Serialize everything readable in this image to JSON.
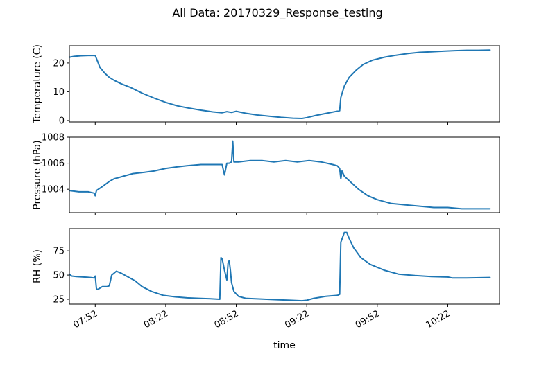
{
  "chart_data": {
    "type": "line",
    "title": "All Data: 20170329_Response_testing",
    "xlabel": "time",
    "x_unit": "clock time (HH:MM), 2017-03-29",
    "xlim": [
      "07:41",
      "10:44"
    ],
    "xticks": [
      "07:52",
      "08:22",
      "08:52",
      "09:22",
      "09:52",
      "10:22"
    ],
    "line_color": "#1f77b4",
    "grid": false,
    "panels": [
      {
        "ylabel": "Temperature (C)",
        "ylim": [
          -0.5,
          26
        ],
        "yticks": [
          0,
          10,
          20
        ],
        "series": [
          {
            "x": [
              "07:41",
              "07:43",
              "07:46",
              "07:49",
              "07:52",
              "07:53",
              "07:54",
              "07:56",
              "07:58",
              "08:00",
              "08:03",
              "08:07",
              "08:12",
              "08:17",
              "08:22",
              "08:27",
              "08:32",
              "08:37",
              "08:42",
              "08:46",
              "08:48",
              "08:50",
              "08:52",
              "08:56",
              "09:01",
              "09:06",
              "09:11",
              "09:16",
              "09:20",
              "09:22",
              "09:26",
              "09:31",
              "09:36",
              "09:36.5",
              "09:38",
              "09:40",
              "09:43",
              "09:46",
              "09:50",
              "09:55",
              "10:00",
              "10:05",
              "10:10",
              "10:15",
              "10:20",
              "10:25",
              "10:30",
              "10:35",
              "10:40"
            ],
            "y": [
              22,
              22.3,
              22.5,
              22.6,
              22.6,
              20.5,
              18.5,
              16.5,
              15,
              14,
              12.8,
              11.5,
              9.5,
              7.8,
              6.3,
              5.1,
              4.3,
              3.6,
              3,
              2.7,
              3.1,
              2.8,
              3.2,
              2.5,
              1.9,
              1.5,
              1.1,
              0.8,
              0.7,
              1.0,
              1.8,
              2.6,
              3.4,
              8,
              12,
              15,
              17.5,
              19.5,
              21,
              22,
              22.7,
              23.3,
              23.7,
              23.9,
              24.1,
              24.3,
              24.4,
              24.4,
              24.5
            ]
          }
        ]
      },
      {
        "ylabel": "Pressure (hPa)",
        "ylim": [
          1002.2,
          1008
        ],
        "yticks": [
          1004,
          1006,
          1008
        ],
        "series": [
          {
            "x": [
              "07:41",
              "07:45",
              "07:49",
              "07:51.5",
              "07:52",
              "07:52.5",
              "07:55",
              "07:58",
              "08:00",
              "08:04",
              "08:08",
              "08:13",
              "08:17",
              "08:22",
              "08:26",
              "08:31",
              "08:37",
              "08:42",
              "08:46",
              "08:47",
              "08:48",
              "08:49",
              "08:50",
              "08:50.5",
              "08:51",
              "08:53",
              "08:58",
              "09:03",
              "09:08",
              "09:13",
              "09:18",
              "09:23",
              "09:28",
              "09:33",
              "09:35",
              "09:36",
              "09:36.5",
              "09:37",
              "09:38",
              "09:41",
              "09:44",
              "09:48",
              "09:52",
              "09:58",
              "10:04",
              "10:10",
              "10:16",
              "10:22",
              "10:28",
              "10:34",
              "10:40"
            ],
            "y": [
              1003.9,
              1003.8,
              1003.8,
              1003.7,
              1003.5,
              1003.9,
              1004.2,
              1004.6,
              1004.8,
              1005,
              1005.2,
              1005.3,
              1005.4,
              1005.6,
              1005.7,
              1005.8,
              1005.9,
              1005.9,
              1005.9,
              1005.1,
              1006.0,
              1006.0,
              1006.1,
              1007.7,
              1006.1,
              1006.1,
              1006.2,
              1006.2,
              1006.1,
              1006.2,
              1006.1,
              1006.2,
              1006.1,
              1005.9,
              1005.8,
              1005.6,
              1004.8,
              1005.4,
              1005.0,
              1004.5,
              1004,
              1003.5,
              1003.2,
              1002.9,
              1002.8,
              1002.7,
              1002.6,
              1002.6,
              1002.5,
              1002.5,
              1002.5
            ]
          }
        ]
      },
      {
        "ylabel": "RH (%)",
        "ylim": [
          20,
          98
        ],
        "yticks": [
          25,
          50,
          75
        ],
        "series": [
          {
            "x": [
              "07:41",
              "07:42",
              "07:44",
              "07:47",
              "07:50",
              "07:51.5",
              "07:52",
              "07:52.5",
              "07:53",
              "07:55",
              "07:57",
              "07:58",
              "07:59",
              "08:01",
              "08:03",
              "08:06",
              "08:09",
              "08:12",
              "08:16",
              "08:21",
              "08:26",
              "08:31",
              "08:36",
              "08:41",
              "08:45",
              "08:45.5",
              "08:46",
              "08:47",
              "08:48",
              "08:48.5",
              "08:49",
              "08:49.5",
              "08:50",
              "08:51",
              "08:53",
              "08:56",
              "09:00",
              "09:05",
              "09:10",
              "09:15",
              "09:20",
              "09:22",
              "09:25",
              "09:30",
              "09:35",
              "09:36",
              "09:36.5",
              "09:38",
              "09:39",
              "09:40",
              "09:42",
              "09:45",
              "09:49",
              "09:55",
              "10:01",
              "10:08",
              "10:15",
              "10:22",
              "10:24",
              "10:30",
              "10:40"
            ],
            "y": [
              51,
              49,
              48.5,
              48,
              47.5,
              47,
              49,
              36,
              35,
              38,
              38,
              39,
              50,
              54,
              52,
              48,
              44,
              38,
              33,
              29,
              27.5,
              26.5,
              26,
              25.5,
              25,
              68,
              67,
              55,
              45,
              62,
              65,
              55,
              42,
              33,
              28,
              26,
              25.5,
              25,
              24.5,
              24,
              23.5,
              24,
              26,
              28,
              29,
              30,
              84,
              94,
              94,
              88,
              78,
              68,
              61,
              55,
              51,
              49.5,
              48.5,
              48,
              47,
              47,
              47.5
            ]
          }
        ]
      }
    ]
  }
}
